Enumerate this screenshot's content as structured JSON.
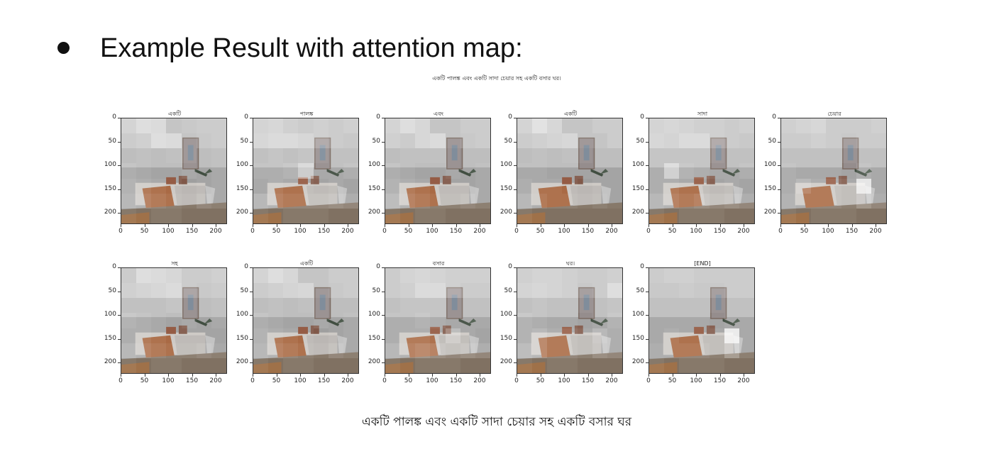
{
  "slide": {
    "title": "Example Result with attention map:",
    "figure_caption": "একটি পালঙ্ক এবং একটি সাদা চেয়ার সহ একটি বসার ঘর।",
    "bottom_caption": "একটি  পালঙ্ক  এবং  একটি  সাদা  চেয়ার  সহ  একটি  বসার  ঘর"
  },
  "axes": {
    "y_ticks": [
      "0",
      "50",
      "100",
      "150",
      "200"
    ],
    "x_ticks": [
      "0",
      "50",
      "100",
      "150",
      "200"
    ]
  },
  "panels": [
    {
      "label": "একটি",
      "attention": [
        [
          0.4,
          0.55,
          0.5,
          0.2,
          0.25,
          0.3,
          0.3
        ],
        [
          0.3,
          0.35,
          0.55,
          0.5,
          0.2,
          0.25,
          0.3
        ],
        [
          0.1,
          0.15,
          0.1,
          0.15,
          0.2,
          0.1,
          0.15
        ],
        [
          0.2,
          0.15,
          0.1,
          0.1,
          0.15,
          0.1,
          0.15
        ],
        [
          0.25,
          0.2,
          0.15,
          0.1,
          0.05,
          0.1,
          0.15
        ],
        [
          0.3,
          0.25,
          0.2,
          0.15,
          0.1,
          0.2,
          0.15
        ],
        [
          0.1,
          0.05,
          0.1,
          0.1,
          0.05,
          0.05,
          0.05
        ]
      ]
    },
    {
      "label": "পালঙ্ক",
      "attention": [
        [
          0.4,
          0.45,
          0.35,
          0.3,
          0.35,
          0.3,
          0.35
        ],
        [
          0.45,
          0.5,
          0.5,
          0.45,
          0.35,
          0.3,
          0.25
        ],
        [
          0.15,
          0.2,
          0.15,
          0.2,
          0.2,
          0.15,
          0.15
        ],
        [
          0.2,
          0.2,
          0.25,
          0.5,
          0.15,
          0.15,
          0.2
        ],
        [
          0.15,
          0.2,
          0.15,
          0.15,
          0.1,
          0.15,
          0.1
        ],
        [
          0.3,
          0.25,
          0.2,
          0.2,
          0.2,
          0.25,
          0.2
        ],
        [
          0.1,
          0.05,
          0.1,
          0.1,
          0.1,
          0.05,
          0.05
        ]
      ]
    },
    {
      "label": "এবং",
      "attention": [
        [
          0.4,
          0.55,
          0.45,
          0.2,
          0.2,
          0.3,
          0.3
        ],
        [
          0.35,
          0.3,
          0.45,
          0.5,
          0.2,
          0.25,
          0.3
        ],
        [
          0.1,
          0.15,
          0.15,
          0.15,
          0.15,
          0.1,
          0.1
        ],
        [
          0.2,
          0.15,
          0.1,
          0.1,
          0.15,
          0.1,
          0.15
        ],
        [
          0.25,
          0.2,
          0.15,
          0.1,
          0.1,
          0.1,
          0.15
        ],
        [
          0.35,
          0.25,
          0.2,
          0.15,
          0.15,
          0.2,
          0.15
        ],
        [
          0.1,
          0.05,
          0.1,
          0.1,
          0.05,
          0.05,
          0.05
        ]
      ]
    },
    {
      "label": "একটি",
      "attention": [
        [
          0.4,
          0.6,
          0.45,
          0.2,
          0.2,
          0.3,
          0.3
        ],
        [
          0.3,
          0.35,
          0.4,
          0.45,
          0.2,
          0.2,
          0.3
        ],
        [
          0.1,
          0.15,
          0.1,
          0.15,
          0.15,
          0.1,
          0.1
        ],
        [
          0.15,
          0.15,
          0.1,
          0.1,
          0.1,
          0.1,
          0.1
        ],
        [
          0.2,
          0.15,
          0.15,
          0.1,
          0.05,
          0.1,
          0.1
        ],
        [
          0.3,
          0.2,
          0.15,
          0.15,
          0.1,
          0.15,
          0.1
        ],
        [
          0.1,
          0.05,
          0.05,
          0.05,
          0.05,
          0.05,
          0.05
        ]
      ]
    },
    {
      "label": "সাদা",
      "attention": [
        [
          0.4,
          0.45,
          0.4,
          0.35,
          0.35,
          0.3,
          0.35
        ],
        [
          0.45,
          0.4,
          0.5,
          0.5,
          0.35,
          0.3,
          0.25
        ],
        [
          0.2,
          0.2,
          0.2,
          0.2,
          0.2,
          0.15,
          0.15
        ],
        [
          0.2,
          0.55,
          0.25,
          0.2,
          0.15,
          0.15,
          0.2
        ],
        [
          0.2,
          0.2,
          0.15,
          0.15,
          0.1,
          0.15,
          0.1
        ],
        [
          0.3,
          0.25,
          0.2,
          0.25,
          0.2,
          0.25,
          0.2
        ],
        [
          0.1,
          0.05,
          0.1,
          0.1,
          0.1,
          0.05,
          0.05
        ]
      ]
    },
    {
      "label": "চেয়ার",
      "attention": [
        [
          0.35,
          0.4,
          0.45,
          0.3,
          0.3,
          0.3,
          0.35
        ],
        [
          0.3,
          0.3,
          0.35,
          0.3,
          0.25,
          0.3,
          0.3
        ],
        [
          0.15,
          0.15,
          0.15,
          0.15,
          0.15,
          0.15,
          0.15
        ],
        [
          0.2,
          0.15,
          0.15,
          0.15,
          0.1,
          0.2,
          0.15
        ],
        [
          0.2,
          0.3,
          0.2,
          0.2,
          0.15,
          0.75,
          0.15
        ],
        [
          0.25,
          0.2,
          0.2,
          0.2,
          0.15,
          0.3,
          0.2
        ],
        [
          0.1,
          0.05,
          0.1,
          0.1,
          0.1,
          0.05,
          0.05
        ]
      ]
    },
    {
      "label": "সহ",
      "attention": [
        [
          0.3,
          0.55,
          0.5,
          0.45,
          0.3,
          0.3,
          0.35
        ],
        [
          0.35,
          0.4,
          0.45,
          0.5,
          0.3,
          0.25,
          0.3
        ],
        [
          0.15,
          0.15,
          0.15,
          0.2,
          0.15,
          0.1,
          0.15
        ],
        [
          0.25,
          0.2,
          0.15,
          0.1,
          0.15,
          0.1,
          0.15
        ],
        [
          0.2,
          0.2,
          0.15,
          0.1,
          0.1,
          0.1,
          0.1
        ],
        [
          0.3,
          0.25,
          0.2,
          0.15,
          0.15,
          0.2,
          0.15
        ],
        [
          0.1,
          0.05,
          0.1,
          0.1,
          0.05,
          0.05,
          0.05
        ]
      ]
    },
    {
      "label": "একটি",
      "attention": [
        [
          0.4,
          0.55,
          0.45,
          0.2,
          0.2,
          0.3,
          0.3
        ],
        [
          0.3,
          0.35,
          0.4,
          0.45,
          0.2,
          0.25,
          0.3
        ],
        [
          0.1,
          0.15,
          0.1,
          0.15,
          0.15,
          0.1,
          0.1
        ],
        [
          0.2,
          0.15,
          0.1,
          0.1,
          0.15,
          0.1,
          0.15
        ],
        [
          0.25,
          0.2,
          0.15,
          0.1,
          0.05,
          0.1,
          0.15
        ],
        [
          0.3,
          0.25,
          0.2,
          0.15,
          0.1,
          0.2,
          0.15
        ],
        [
          0.1,
          0.05,
          0.1,
          0.1,
          0.05,
          0.05,
          0.05
        ]
      ]
    },
    {
      "label": "বসার",
      "attention": [
        [
          0.3,
          0.4,
          0.45,
          0.4,
          0.35,
          0.35,
          0.35
        ],
        [
          0.3,
          0.35,
          0.5,
          0.5,
          0.35,
          0.3,
          0.3
        ],
        [
          0.15,
          0.2,
          0.2,
          0.2,
          0.15,
          0.15,
          0.15
        ],
        [
          0.2,
          0.2,
          0.25,
          0.2,
          0.15,
          0.15,
          0.15
        ],
        [
          0.2,
          0.2,
          0.2,
          0.15,
          0.35,
          0.15,
          0.1
        ],
        [
          0.3,
          0.25,
          0.3,
          0.25,
          0.2,
          0.25,
          0.2
        ],
        [
          0.1,
          0.05,
          0.1,
          0.1,
          0.1,
          0.05,
          0.05
        ]
      ]
    },
    {
      "label": "ঘর।",
      "attention": [
        [
          0.35,
          0.4,
          0.4,
          0.35,
          0.3,
          0.3,
          0.35
        ],
        [
          0.4,
          0.45,
          0.4,
          0.35,
          0.25,
          0.3,
          0.55
        ],
        [
          0.15,
          0.2,
          0.15,
          0.15,
          0.15,
          0.15,
          0.2
        ],
        [
          0.25,
          0.2,
          0.15,
          0.15,
          0.1,
          0.15,
          0.25
        ],
        [
          0.25,
          0.3,
          0.2,
          0.2,
          0.15,
          0.3,
          0.2
        ],
        [
          0.35,
          0.3,
          0.2,
          0.2,
          0.15,
          0.25,
          0.2
        ],
        [
          0.1,
          0.05,
          0.1,
          0.1,
          0.05,
          0.05,
          0.05
        ]
      ]
    },
    {
      "label": "[END]",
      "attention": [
        [
          0.3,
          0.35,
          0.35,
          0.3,
          0.3,
          0.3,
          0.3
        ],
        [
          0.25,
          0.25,
          0.3,
          0.25,
          0.25,
          0.3,
          0.3
        ],
        [
          0.15,
          0.15,
          0.15,
          0.15,
          0.15,
          0.15,
          0.15
        ],
        [
          0.15,
          0.15,
          0.15,
          0.15,
          0.1,
          0.15,
          0.15
        ],
        [
          0.15,
          0.2,
          0.15,
          0.15,
          0.15,
          0.8,
          0.15
        ],
        [
          0.2,
          0.2,
          0.2,
          0.2,
          0.15,
          0.35,
          0.15
        ],
        [
          0.1,
          0.05,
          0.1,
          0.1,
          0.1,
          0.05,
          0.05
        ]
      ]
    }
  ]
}
